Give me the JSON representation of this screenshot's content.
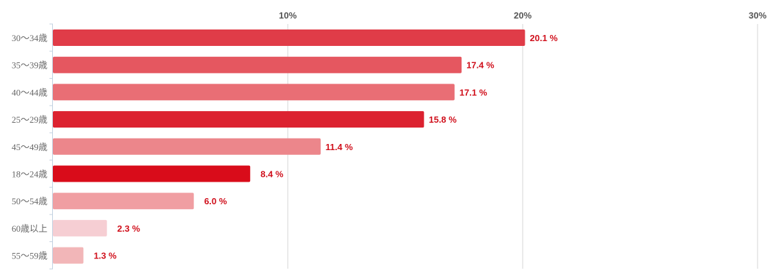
{
  "chart_data": {
    "type": "bar",
    "orientation": "horizontal",
    "categories": [
      "30〜34歳",
      "35〜39歳",
      "40〜44歳",
      "25〜29歳",
      "45〜49歳",
      "18〜24歳",
      "50〜54歳",
      "60歳以上",
      "55〜59歳"
    ],
    "values": [
      20.1,
      17.4,
      17.1,
      15.8,
      11.4,
      8.4,
      6.0,
      2.3,
      1.3
    ],
    "value_labels": [
      "20.1 %",
      "17.4 %",
      "17.1 %",
      "15.8 %",
      "11.4 %",
      "8.4 %",
      "6.0 %",
      "2.3 %",
      "1.3 %"
    ],
    "colors": [
      "#e03c48",
      "#e55760",
      "#e96e75",
      "#dc2230",
      "#ec868b",
      "#d90c1a",
      "#f09ea2",
      "#f6ced3",
      "#f2b6b8"
    ],
    "x_ticks": [
      10,
      20,
      30
    ],
    "x_tick_labels": [
      "10%",
      "20%",
      "30%"
    ],
    "xlim": [
      0,
      30
    ],
    "grid": true,
    "title": "",
    "xlabel": "",
    "ylabel": ""
  }
}
